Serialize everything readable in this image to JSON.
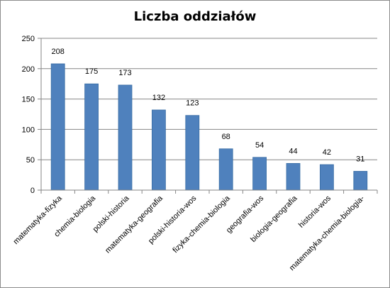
{
  "chart_data": {
    "type": "bar",
    "title": "Liczba oddziałów",
    "categories": [
      "matematyka-fizyka",
      "chemia-biologia",
      "polski-historia",
      "matematyka-geografia",
      "polski-historia-wos",
      "fizyka-chemia-biologia",
      "geografia-wos",
      "biologia-geografia",
      "historia-wos",
      "matematyka-chemia-biologia-"
    ],
    "values": [
      208,
      175,
      173,
      132,
      123,
      68,
      54,
      44,
      42,
      31
    ],
    "xlabel": "",
    "ylabel": "",
    "ylim": [
      0,
      250
    ],
    "yticks": [
      0,
      50,
      100,
      150,
      200,
      250
    ],
    "grid": true,
    "legend": "none",
    "bar_color": "#4f81bd",
    "bar_edge_color": "#3a6ea5",
    "grid_color": "#868686"
  }
}
